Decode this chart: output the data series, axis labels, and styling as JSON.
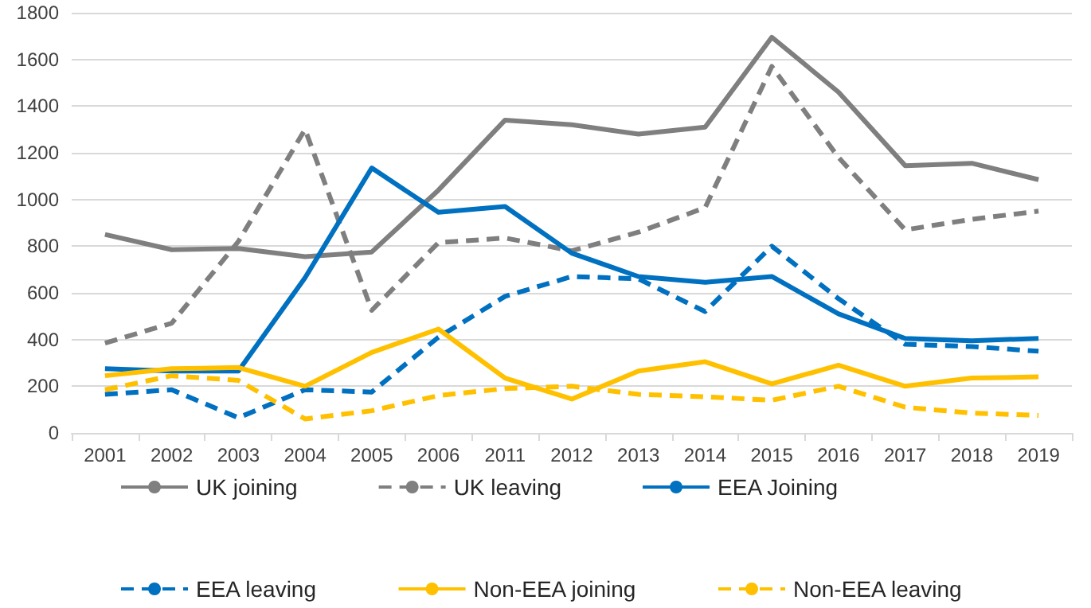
{
  "chart_data": {
    "type": "line",
    "categories": [
      "2001",
      "2002",
      "2003",
      "2004",
      "2005",
      "2006",
      "2011",
      "2012",
      "2013",
      "2014",
      "2015",
      "2016",
      "2017",
      "2018",
      "2019"
    ],
    "series": [
      {
        "name": "UK joining",
        "color": "#7f7f7f",
        "line_style": "solid",
        "values": [
          850,
          785,
          790,
          755,
          775,
          1040,
          1340,
          1320,
          1280,
          1310,
          1695,
          1460,
          1145,
          1155,
          1085
        ]
      },
      {
        "name": "UK leaving",
        "color": "#7f7f7f",
        "line_style": "dashed",
        "values": [
          385,
          470,
          820,
          1300,
          525,
          815,
          835,
          780,
          860,
          965,
          1570,
          1180,
          870,
          915,
          950
        ]
      },
      {
        "name": "EEA Joining",
        "color": "#0070c0",
        "line_style": "solid",
        "values": [
          275,
          265,
          265,
          665,
          1135,
          945,
          970,
          770,
          670,
          645,
          670,
          510,
          405,
          395,
          405
        ]
      },
      {
        "name": "EEA leaving",
        "color": "#0070c0",
        "line_style": "dashed",
        "values": [
          165,
          185,
          65,
          185,
          175,
          410,
          585,
          670,
          660,
          520,
          800,
          575,
          380,
          370,
          350
        ]
      },
      {
        "name": "Non-EEA joining",
        "color": "#ffc000",
        "line_style": "solid",
        "values": [
          245,
          275,
          280,
          200,
          345,
          445,
          235,
          145,
          265,
          305,
          210,
          290,
          200,
          235,
          240
        ]
      },
      {
        "name": "Non-EEA leaving",
        "color": "#ffc000",
        "line_style": "dashed",
        "values": [
          185,
          245,
          225,
          60,
          95,
          160,
          190,
          200,
          165,
          155,
          140,
          200,
          110,
          85,
          75
        ]
      }
    ],
    "ylim": [
      0,
      1800
    ],
    "yticks": [
      0,
      200,
      400,
      600,
      800,
      1000,
      1200,
      1400,
      1600,
      1800
    ],
    "grid": "y",
    "legend": "bottom",
    "marker": "none"
  }
}
